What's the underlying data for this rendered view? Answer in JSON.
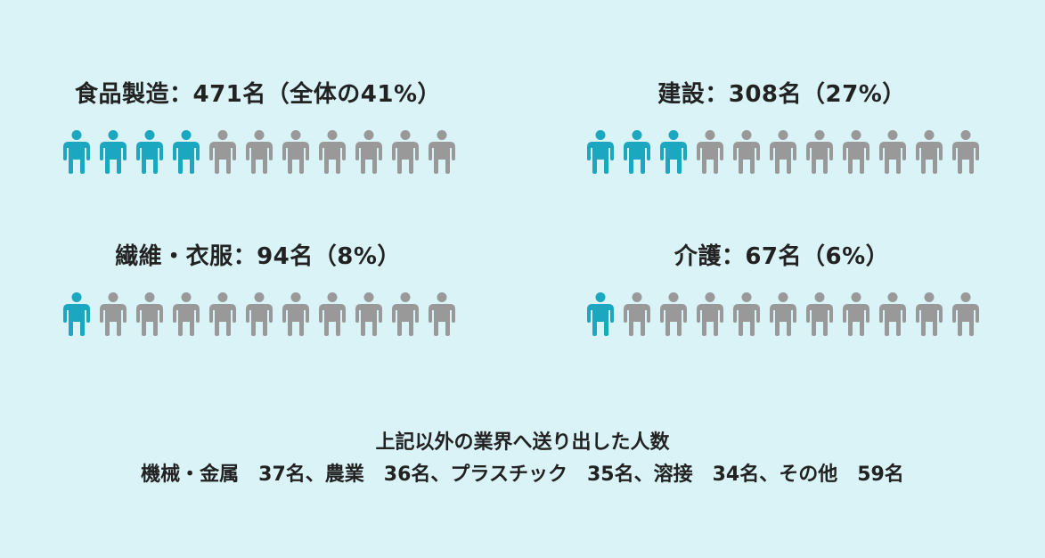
{
  "colors": {
    "background": "#d9f3f7",
    "highlight": "#1aa7bf",
    "muted": "#999999"
  },
  "icon_name": "person-icon",
  "chart_data": [
    {
      "type": "pictograph",
      "title": "食品製造：471名（全体の41%）",
      "category": "食品製造",
      "count": 471,
      "percent": 41,
      "icons_total": 11,
      "icons_highlighted": 4
    },
    {
      "type": "pictograph",
      "title": "建設：308名（27%）",
      "category": "建設",
      "count": 308,
      "percent": 27,
      "icons_total": 11,
      "icons_highlighted": 3
    },
    {
      "type": "pictograph",
      "title": "繊維・衣服：94名（8%）",
      "category": "繊維・衣服",
      "count": 94,
      "percent": 8,
      "icons_total": 11,
      "icons_highlighted": 1
    },
    {
      "type": "pictograph",
      "title": "介護：67名（6%）",
      "category": "介護",
      "count": 67,
      "percent": 6,
      "icons_total": 11,
      "icons_highlighted": 1
    }
  ],
  "footer": {
    "title": "上記以外の業界へ送り出した人数",
    "detail": "機械・金属　37名、農業　36名、プラスチック　35名、溶接　34名、その他　59名"
  }
}
